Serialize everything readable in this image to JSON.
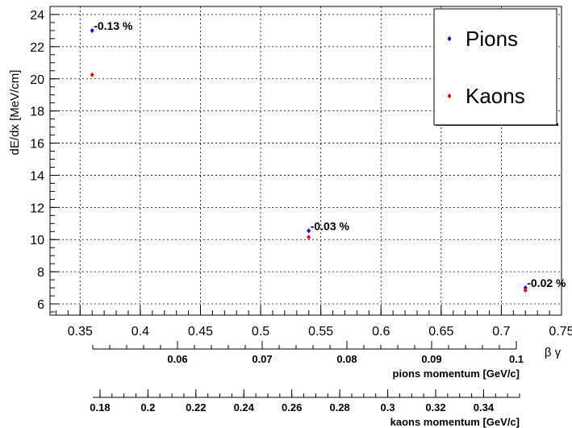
{
  "chart_data": {
    "type": "scatter",
    "xlabel": "β γ",
    "ylabel": "dE/dx [MeV/cm]",
    "xlim": [
      0.325,
      0.75
    ],
    "ylim": [
      5.3,
      24.5
    ],
    "grid": true,
    "legend_position": "top-right",
    "xticks": [
      "0.35",
      "0.4",
      "0.45",
      "0.5",
      "0.55",
      "0.6",
      "0.65",
      "0.7",
      "0.75"
    ],
    "yticks": [
      "6",
      "8",
      "10",
      "12",
      "14",
      "16",
      "18",
      "20",
      "22",
      "24"
    ],
    "series": [
      {
        "name": "Pions",
        "color": "#0000ff",
        "points": [
          {
            "x": 0.36,
            "y": 23.0
          },
          {
            "x": 0.54,
            "y": 10.55
          },
          {
            "x": 0.72,
            "y": 7.0
          }
        ]
      },
      {
        "name": "Kaons",
        "color": "#ff0000",
        "points": [
          {
            "x": 0.36,
            "y": 20.25
          },
          {
            "x": 0.54,
            "y": 10.15
          },
          {
            "x": 0.72,
            "y": 6.85
          }
        ]
      }
    ],
    "annotations": [
      {
        "text": "-0.13 %",
        "x": 0.36,
        "y": 23.0
      },
      {
        "text": "-0.03 %",
        "x": 0.54,
        "y": 10.55
      },
      {
        "text": "-0.02 %",
        "x": 0.72,
        "y": 7.0
      }
    ],
    "secondary_axes": [
      {
        "label": "pions momentum [GeV/c]",
        "ticks": [
          "0.06",
          "0.07",
          "0.08",
          "0.09",
          "0.1"
        ],
        "tick_values": [
          0.06,
          0.07,
          0.08,
          0.09,
          0.1
        ],
        "range": [
          0.05,
          0.1
        ]
      },
      {
        "label": "kaons momentum [GeV/c]",
        "ticks": [
          "0.18",
          "0.2",
          "0.22",
          "0.24",
          "0.26",
          "0.28",
          "0.3",
          "0.32",
          "0.34"
        ],
        "tick_values": [
          0.18,
          0.2,
          0.22,
          0.24,
          0.26,
          0.28,
          0.3,
          0.32,
          0.34
        ],
        "range": [
          0.177,
          0.355
        ]
      }
    ]
  }
}
